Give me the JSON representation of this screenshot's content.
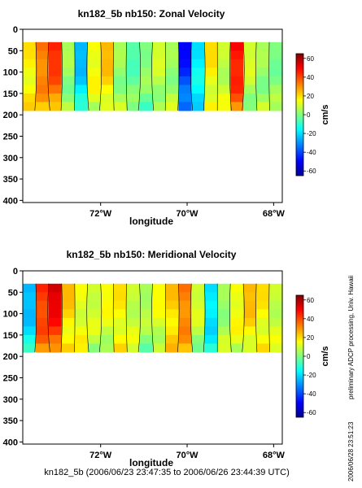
{
  "chart_data": [
    {
      "type": "heatmap",
      "title": "kn182_5b nb150: Zonal Velocity",
      "xlabel": "longitude",
      "ylabel": "",
      "xlim": [
        -73.8,
        -67.8
      ],
      "ylim": [
        405,
        0
      ],
      "x_ticks": [
        -72,
        -70,
        -68
      ],
      "x_tick_labels": [
        "72°W",
        "70°W",
        "68°W"
      ],
      "y_ticks": [
        0,
        50,
        100,
        150,
        200,
        250,
        300,
        350,
        400
      ],
      "y_tick_labels": [
        "0",
        "50",
        "100",
        "150",
        "200",
        "250",
        "300",
        "350",
        "400"
      ],
      "data_depth_range": [
        30,
        190
      ],
      "colorbar": {
        "label": "cm/s",
        "range": [
          -65,
          65
        ],
        "ticks": [
          60,
          40,
          20,
          0,
          -20,
          -40,
          -60
        ],
        "tick_labels": [
          "60",
          "40",
          "20",
          "0",
          "-20",
          "-40",
          "-60"
        ]
      },
      "columns": [
        {
          "lon": -73.65,
          "u": 20
        },
        {
          "lon": -73.35,
          "u": 35
        },
        {
          "lon": -73.05,
          "u": 45
        },
        {
          "lon": -72.75,
          "u": 5
        },
        {
          "lon": -72.45,
          "u": -25
        },
        {
          "lon": -72.15,
          "u": 15
        },
        {
          "lon": -71.85,
          "u": 25
        },
        {
          "lon": -71.55,
          "u": 5
        },
        {
          "lon": -71.25,
          "u": -5
        },
        {
          "lon": -70.95,
          "u": 0
        },
        {
          "lon": -70.65,
          "u": 10
        },
        {
          "lon": -70.35,
          "u": 5
        },
        {
          "lon": -70.05,
          "u": -50
        },
        {
          "lon": -69.75,
          "u": -20
        },
        {
          "lon": -69.45,
          "u": 20
        },
        {
          "lon": -69.15,
          "u": 10
        },
        {
          "lon": -68.85,
          "u": 50
        },
        {
          "lon": -68.55,
          "u": 10
        },
        {
          "lon": -68.25,
          "u": 5
        },
        {
          "lon": -67.95,
          "u": 0
        }
      ]
    },
    {
      "type": "heatmap",
      "title": "kn182_5b nb150: Meridional Velocity",
      "xlabel": "longitude",
      "ylabel": "",
      "xlim": [
        -73.8,
        -67.8
      ],
      "ylim": [
        405,
        0
      ],
      "x_ticks": [
        -72,
        -70,
        -68
      ],
      "x_tick_labels": [
        "72°W",
        "70°W",
        "68°W"
      ],
      "y_ticks": [
        0,
        50,
        100,
        150,
        200,
        250,
        300,
        350,
        400
      ],
      "y_tick_labels": [
        "0",
        "50",
        "100",
        "150",
        "200",
        "250",
        "300",
        "350",
        "400"
      ],
      "data_depth_range": [
        30,
        190
      ],
      "colorbar": {
        "label": "cm/s",
        "range": [
          -65,
          65
        ],
        "ticks": [
          60,
          40,
          20,
          0,
          -20,
          -40,
          -60
        ],
        "tick_labels": [
          "60",
          "40",
          "20",
          "0",
          "-20",
          "-40",
          "-60"
        ]
      },
      "columns": [
        {
          "lon": -73.65,
          "v": -25
        },
        {
          "lon": -73.35,
          "v": 45
        },
        {
          "lon": -73.05,
          "v": 55
        },
        {
          "lon": -72.75,
          "v": 25
        },
        {
          "lon": -72.45,
          "v": 15
        },
        {
          "lon": -72.15,
          "v": 10
        },
        {
          "lon": -71.85,
          "v": 15
        },
        {
          "lon": -71.55,
          "v": 20
        },
        {
          "lon": -71.25,
          "v": 10
        },
        {
          "lon": -70.95,
          "v": 5
        },
        {
          "lon": -70.65,
          "v": 15
        },
        {
          "lon": -70.35,
          "v": 25
        },
        {
          "lon": -70.05,
          "v": 35
        },
        {
          "lon": -69.75,
          "v": 10
        },
        {
          "lon": -69.45,
          "v": -20
        },
        {
          "lon": -69.15,
          "v": 5
        },
        {
          "lon": -68.85,
          "v": 15
        },
        {
          "lon": -68.55,
          "v": 25
        },
        {
          "lon": -68.25,
          "v": 20
        },
        {
          "lon": -67.95,
          "v": 10
        }
      ]
    }
  ],
  "footer": {
    "caption": "kn182_5b (2006/06/23 23:47:35 to 2006/06/26 23:44:39 UTC)"
  },
  "side_notes": {
    "processing": "preliminary ADCP processing,  Univ. Hawaii",
    "timestamp": "2006/06/28 23:51:23"
  },
  "colors": {
    "colormap": [
      "#00008f",
      "#0000ff",
      "#00ffff",
      "#ffff00",
      "#ff0000",
      "#800000"
    ],
    "background": "#ffffff",
    "axis": "#000000"
  }
}
